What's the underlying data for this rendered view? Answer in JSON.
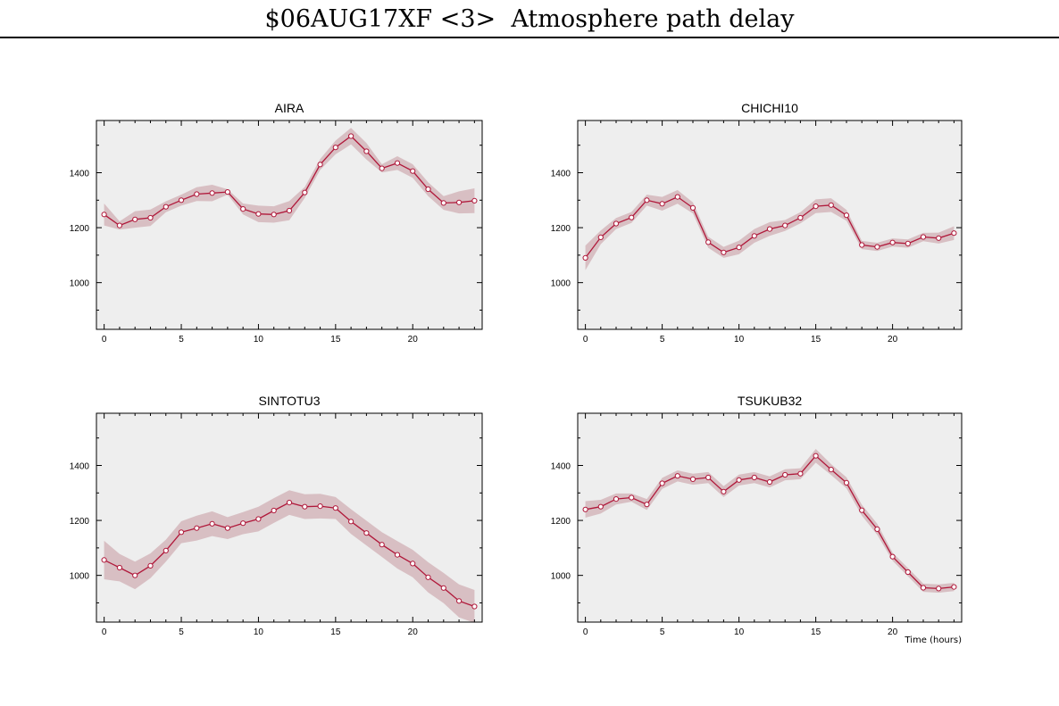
{
  "title": "$06AUG17XF <3>  Atmosphere path delay",
  "x_axis_label": "Time (hours)",
  "colors": {
    "panel_bg": "#eeeeee",
    "band": "#d8bfc3",
    "line": "#b0183a",
    "marker_fill": "#ffffff"
  },
  "chart_data": [
    {
      "type": "line",
      "title": "AIRA",
      "xlim": [
        -0.5,
        24.5
      ],
      "ylim": [
        830,
        1590
      ],
      "xticks": [
        0,
        5,
        10,
        15,
        20
      ],
      "yticks": [
        1000,
        1200,
        1400
      ],
      "x": [
        0,
        1,
        2,
        3,
        4,
        5,
        6,
        7,
        8,
        9,
        10,
        11,
        12,
        13,
        14,
        15,
        16,
        17,
        18,
        19,
        20,
        21,
        22,
        23,
        24
      ],
      "values": [
        1248,
        1208,
        1230,
        1236,
        1276,
        1300,
        1322,
        1326,
        1330,
        1268,
        1250,
        1248,
        1262,
        1328,
        1430,
        1492,
        1533,
        1478,
        1416,
        1435,
        1406,
        1340,
        1290,
        1292,
        1298
      ],
      "band": [
        40,
        15,
        30,
        30,
        20,
        20,
        25,
        30,
        10,
        20,
        30,
        30,
        35,
        20,
        20,
        25,
        30,
        30,
        15,
        25,
        25,
        25,
        25,
        40,
        45
      ]
    },
    {
      "type": "line",
      "title": "CHICHI10",
      "xlim": [
        -0.5,
        24.5
      ],
      "ylim": [
        830,
        1590
      ],
      "xticks": [
        0,
        5,
        10,
        15,
        20
      ],
      "yticks": [
        1000,
        1200,
        1400
      ],
      "x": [
        0,
        1,
        2,
        3,
        4,
        5,
        6,
        7,
        8,
        9,
        10,
        11,
        12,
        13,
        14,
        15,
        16,
        17,
        18,
        19,
        20,
        21,
        22,
        23,
        24
      ],
      "values": [
        1090,
        1165,
        1215,
        1237,
        1300,
        1287,
        1312,
        1272,
        1147,
        1110,
        1128,
        1170,
        1195,
        1208,
        1236,
        1278,
        1282,
        1245,
        1137,
        1130,
        1146,
        1142,
        1166,
        1162,
        1180
      ],
      "band": [
        45,
        25,
        20,
        20,
        20,
        25,
        25,
        20,
        20,
        20,
        25,
        25,
        25,
        20,
        20,
        25,
        25,
        20,
        15,
        15,
        15,
        15,
        15,
        20,
        25
      ]
    },
    {
      "type": "line",
      "title": "SINTOTU3",
      "xlim": [
        -0.5,
        24.5
      ],
      "ylim": [
        830,
        1590
      ],
      "xticks": [
        0,
        5,
        10,
        15,
        20
      ],
      "yticks": [
        1000,
        1200,
        1400
      ],
      "x": [
        0,
        1,
        2,
        3,
        4,
        5,
        6,
        7,
        8,
        9,
        10,
        11,
        12,
        13,
        14,
        15,
        16,
        17,
        18,
        19,
        20,
        21,
        22,
        23,
        24
      ],
      "values": [
        1056,
        1028,
        1000,
        1035,
        1090,
        1157,
        1172,
        1188,
        1172,
        1190,
        1205,
        1236,
        1265,
        1250,
        1252,
        1245,
        1196,
        1154,
        1112,
        1075,
        1043,
        993,
        954,
        907,
        887
      ],
      "band": [
        70,
        50,
        50,
        45,
        40,
        40,
        45,
        45,
        40,
        40,
        45,
        45,
        45,
        45,
        45,
        40,
        45,
        45,
        45,
        50,
        50,
        55,
        55,
        60,
        60
      ]
    },
    {
      "type": "line",
      "title": "TSUKUB32",
      "xlim": [
        -0.5,
        24.5
      ],
      "ylim": [
        830,
        1590
      ],
      "xticks": [
        0,
        5,
        10,
        15,
        20
      ],
      "yticks": [
        1000,
        1200,
        1400
      ],
      "x": [
        0,
        1,
        2,
        3,
        4,
        5,
        6,
        7,
        8,
        9,
        10,
        11,
        12,
        13,
        14,
        15,
        16,
        17,
        18,
        19,
        20,
        21,
        22,
        23,
        24
      ],
      "values": [
        1240,
        1250,
        1278,
        1283,
        1258,
        1335,
        1362,
        1350,
        1356,
        1305,
        1347,
        1356,
        1340,
        1366,
        1370,
        1435,
        1385,
        1337,
        1237,
        1168,
        1068,
        1012,
        955,
        952,
        958
      ],
      "band": [
        30,
        25,
        20,
        15,
        20,
        20,
        20,
        20,
        20,
        20,
        20,
        20,
        20,
        20,
        20,
        25,
        20,
        20,
        20,
        20,
        15,
        15,
        15,
        15,
        15
      ]
    }
  ]
}
